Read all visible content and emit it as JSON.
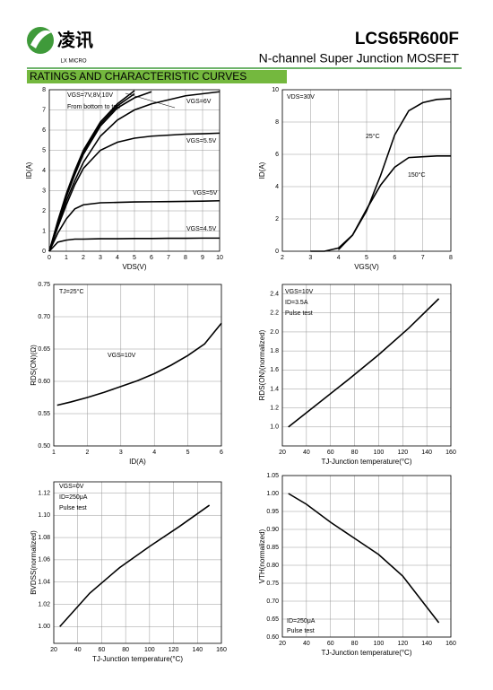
{
  "header": {
    "logo_text": "凌讯",
    "logo_sub": "LX MICRO",
    "part_number": "LCS65R600F",
    "subtitle": "N-channel Super Junction MOSFET"
  },
  "section_title": "RATINGS AND CHARACTERISTIC CURVES",
  "chart_data": [
    {
      "type": "line",
      "xlabel": "VDS(V)",
      "ylabel": "ID(A)",
      "color": "#000000",
      "grid": true,
      "xlim": [
        0,
        10
      ],
      "ylim": [
        0,
        8
      ],
      "xticks": [
        0,
        1,
        2,
        3,
        4,
        5,
        6,
        7,
        8,
        9,
        10
      ],
      "yticks": [
        0,
        1,
        2,
        3,
        4,
        5,
        6,
        7,
        8
      ],
      "x": [
        0,
        0.5,
        1,
        1.5,
        2,
        3,
        4,
        5,
        6,
        7,
        8,
        9,
        10
      ],
      "series": [
        {
          "values": [
            0,
            0.45,
            0.55,
            0.6,
            0.6,
            0.62,
            0.62,
            0.63,
            0.63,
            0.64,
            0.64,
            0.65,
            0.65
          ]
        },
        {
          "values": [
            0,
            0.9,
            1.6,
            2.1,
            2.3,
            2.4,
            2.42,
            2.44,
            2.45,
            2.46,
            2.47,
            2.48,
            2.5
          ]
        },
        {
          "values": [
            0,
            1.2,
            2.3,
            3.3,
            4.1,
            5.0,
            5.4,
            5.6,
            5.7,
            5.75,
            5.8,
            5.82,
            5.85
          ]
        },
        {
          "values": [
            0,
            1.3,
            2.5,
            3.5,
            4.4,
            5.7,
            6.5,
            7.0,
            7.3,
            7.5,
            7.7,
            7.8,
            7.9
          ]
        },
        {
          "values": [
            0,
            1.4,
            2.7,
            3.8,
            4.8,
            6.2,
            7.1,
            7.6,
            7.9,
            null,
            null,
            null,
            null
          ]
        },
        {
          "values": [
            0,
            1.45,
            2.8,
            3.9,
            4.9,
            6.3,
            7.2,
            7.8,
            null,
            null,
            null,
            null,
            null
          ]
        },
        {
          "values": [
            0,
            1.5,
            2.85,
            4.0,
            5.0,
            6.4,
            7.3,
            7.95,
            null,
            null,
            null,
            null,
            null
          ]
        }
      ],
      "annotations": [
        "VGS=7V,8V,10V",
        "From bottom to top",
        "VGS=6V",
        "VGS=5.5V",
        "VGS=5V",
        "VGS=4.5V"
      ]
    },
    {
      "type": "line",
      "xlabel": "VGS(V)",
      "ylabel": "ID(A)",
      "color": "#000000",
      "grid": true,
      "xlim": [
        2,
        8
      ],
      "ylim": [
        0,
        10
      ],
      "xticks": [
        2,
        3,
        4,
        5,
        6,
        7,
        8
      ],
      "yticks": [
        0,
        2,
        4,
        6,
        8,
        10
      ],
      "x": [
        3,
        3.5,
        4,
        4.5,
        5,
        5.5,
        6,
        6.5,
        7,
        7.5,
        8
      ],
      "series": [
        {
          "values": [
            0,
            0,
            0.2,
            1.0,
            2.5,
            4.7,
            7.2,
            8.7,
            9.2,
            9.4,
            9.45
          ]
        },
        {
          "values": [
            null,
            null,
            0.1,
            1.0,
            2.6,
            4.1,
            5.2,
            5.8,
            5.85,
            5.9,
            5.9
          ]
        }
      ],
      "annotations": [
        "VDS=30V",
        "25°C",
        "150°C"
      ]
    },
    {
      "type": "line",
      "xlabel": "ID(A)",
      "ylabel": "RDS(ON)(Ω)",
      "color": "#000000",
      "grid": true,
      "xlim": [
        1,
        6
      ],
      "ylim": [
        0.5,
        0.75
      ],
      "xticks": [
        1,
        2,
        3,
        4,
        5,
        6
      ],
      "yticks": [
        {
          "value": 0.5,
          "label": "0.50"
        },
        0.55,
        {
          "value": 0.6,
          "label": "0.60"
        },
        0.65,
        {
          "value": 0.7,
          "label": "0.70"
        },
        0.75
      ],
      "x": [
        1.1,
        1.5,
        2,
        2.5,
        3,
        3.5,
        4,
        4.5,
        5,
        5.5,
        6
      ],
      "series": [
        {
          "values": [
            0.563,
            0.568,
            0.575,
            0.583,
            0.592,
            0.601,
            0.612,
            0.625,
            0.64,
            0.658,
            0.69
          ]
        }
      ],
      "annotations": [
        "TJ=25°C",
        "VGS=10V"
      ]
    },
    {
      "type": "line",
      "xlabel": "TJ-Junction temperature(°C)",
      "ylabel": "RDS(ON)(normalized)",
      "color": "#000000",
      "grid": true,
      "xlim": [
        20,
        160
      ],
      "ylim": [
        0.8,
        2.5
      ],
      "xticks": [
        20,
        40,
        60,
        80,
        100,
        120,
        140,
        160
      ],
      "yticks": [
        {
          "value": 1.0,
          "label": "1.0"
        },
        1.2,
        1.4,
        1.6,
        1.8,
        {
          "value": 2.0,
          "label": "2.0"
        },
        2.2,
        2.4
      ],
      "x": [
        25,
        50,
        75,
        100,
        125,
        150
      ],
      "series": [
        {
          "values": [
            1.0,
            1.25,
            1.5,
            1.76,
            2.04,
            2.35
          ]
        }
      ],
      "annotations": [
        "VGS=10V",
        "ID=3.5A",
        "Pulse test"
      ]
    },
    {
      "type": "line",
      "xlabel": "TJ-Junction temperature(°C)",
      "ylabel": "BVDSS(normalized)",
      "color": "#000000",
      "grid": true,
      "xlim": [
        20,
        160
      ],
      "ylim": [
        0.985,
        1.13
      ],
      "xticks": [
        20,
        40,
        60,
        80,
        100,
        120,
        140,
        160
      ],
      "yticks": [
        {
          "value": 1.0,
          "label": "1.00"
        },
        1.02,
        1.04,
        1.06,
        1.08,
        {
          "value": 1.1,
          "label": "1.10"
        },
        1.12
      ],
      "x": [
        25,
        50,
        75,
        100,
        125,
        150
      ],
      "series": [
        {
          "values": [
            1.0,
            1.03,
            1.053,
            1.072,
            1.09,
            1.109
          ]
        }
      ],
      "annotations": [
        "VGS=0V",
        "ID=250μA",
        "Pulse test"
      ]
    },
    {
      "type": "line",
      "xlabel": "TJ-Junction temperature(°C)",
      "ylabel": "VTH(normalized)",
      "color": "#000000",
      "grid": true,
      "xlim": [
        20,
        160
      ],
      "ylim": [
        0.6,
        1.05
      ],
      "xticks": [
        20,
        40,
        60,
        80,
        100,
        120,
        140,
        160
      ],
      "yticks": [
        {
          "value": 0.6,
          "label": "0.60"
        },
        0.65,
        {
          "value": 0.7,
          "label": "0.70"
        },
        0.75,
        {
          "value": 0.8,
          "label": "0.80"
        },
        0.85,
        {
          "value": 0.9,
          "label": "0.90"
        },
        0.95,
        {
          "value": 1.0,
          "label": "1.00"
        },
        1.05
      ],
      "x": [
        25,
        40,
        60,
        80,
        100,
        120,
        150
      ],
      "series": [
        {
          "values": [
            1.0,
            0.97,
            0.92,
            0.875,
            0.83,
            0.77,
            0.64
          ]
        }
      ],
      "annotations": [
        "ID=250μA",
        "Pulse test"
      ]
    }
  ]
}
